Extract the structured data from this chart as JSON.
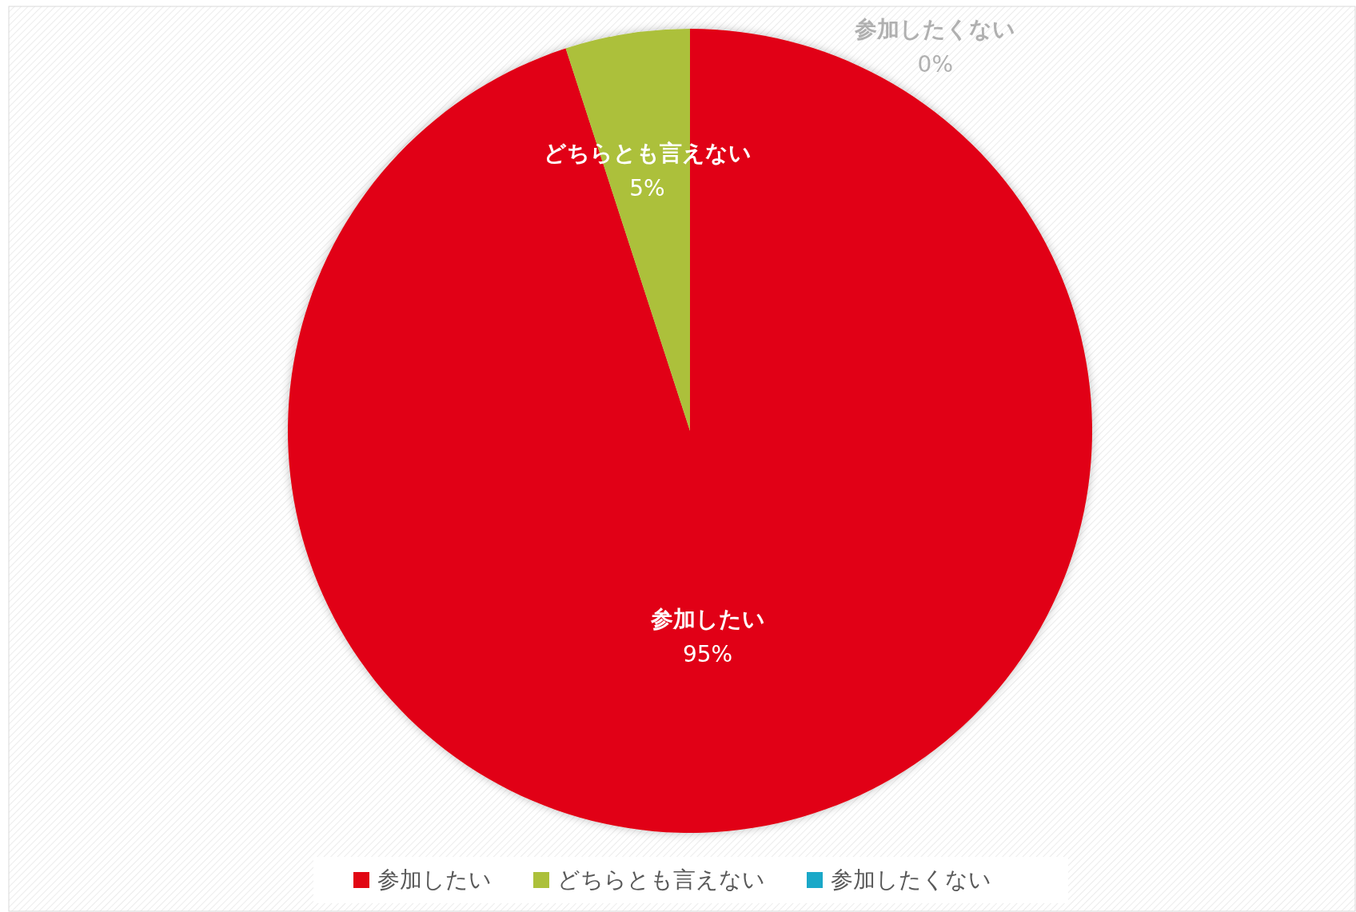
{
  "chart_data": {
    "type": "pie",
    "categories": [
      "参加したい",
      "どちらとも言えない",
      "参加したくない"
    ],
    "values": [
      95,
      5,
      0
    ],
    "colors": [
      "#e10613",
      "#acc03a",
      "#1aa8c8"
    ],
    "value_labels": [
      "95%",
      "5%",
      "0%"
    ],
    "legend": "bottom"
  }
}
